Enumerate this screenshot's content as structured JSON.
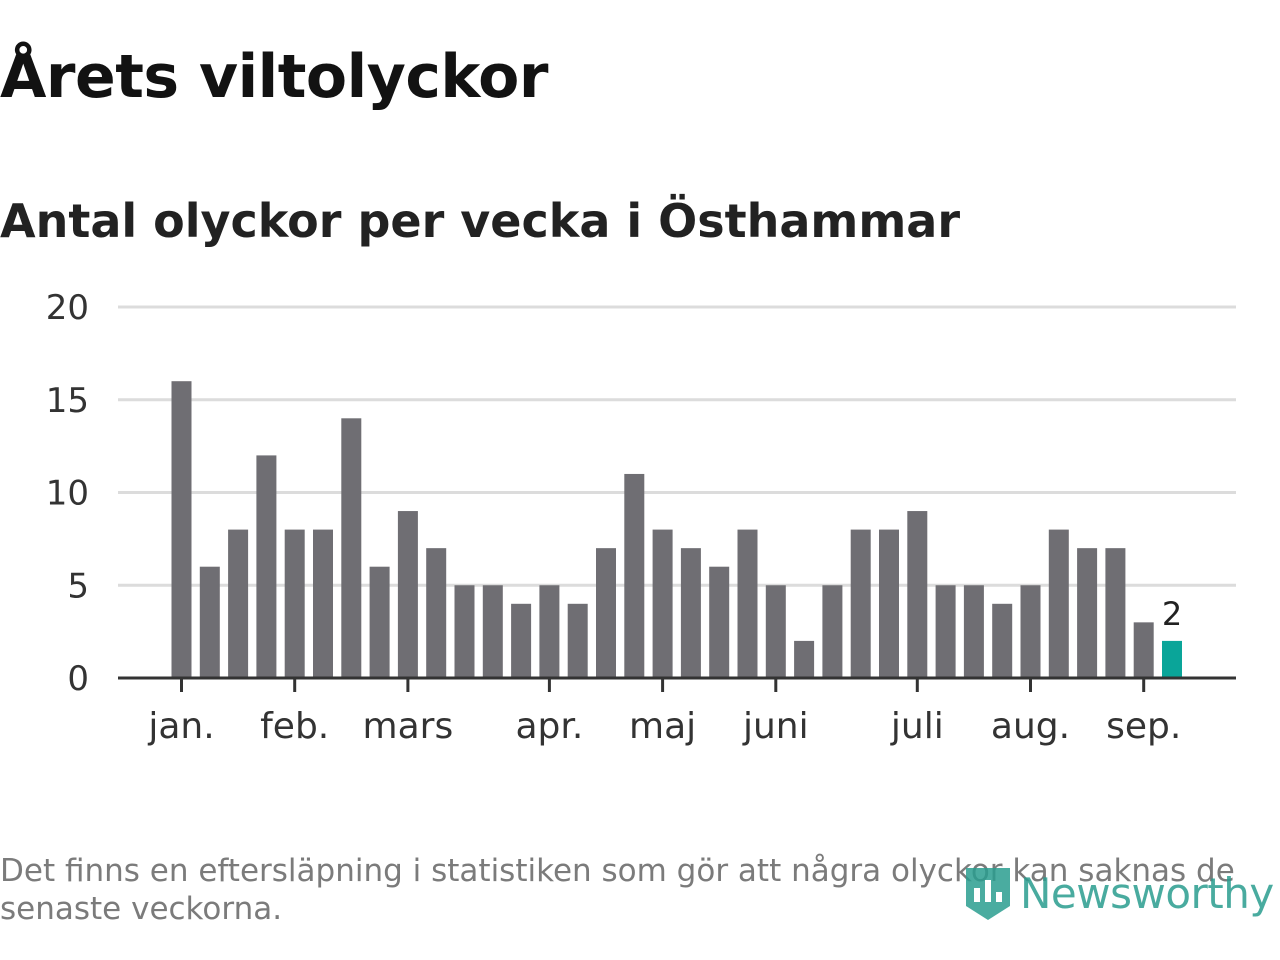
{
  "header": {
    "title": "Årets viltolyckor",
    "subtitle": "Antal olyckor per vecka i Östhammar"
  },
  "footer": {
    "note": "Det finns en eftersläpning i statistiken som gör att några olyckor kan saknas de senaste veckorna.",
    "brand": "Newsworthy",
    "brand_icon": "chart-badge-icon"
  },
  "colors": {
    "bar": "#6f6e73",
    "highlight": "#0aa599",
    "grid": "#dcdcdc",
    "axis": "#333333",
    "brand": "#2a9d8f"
  },
  "chart_data": {
    "type": "bar",
    "title": "Antal olyckor per vecka i Östhammar",
    "xlabel": "",
    "ylabel": "",
    "ylim": [
      0,
      20
    ],
    "yticks": [
      0,
      5,
      10,
      15,
      20
    ],
    "grid": true,
    "values": [
      16,
      6,
      8,
      12,
      8,
      8,
      14,
      6,
      9,
      7,
      5,
      5,
      4,
      5,
      4,
      7,
      11,
      8,
      7,
      6,
      8,
      5,
      2,
      5,
      8,
      8,
      9,
      5,
      5,
      4,
      5,
      8,
      7,
      7,
      3,
      2
    ],
    "highlight_index": 35,
    "highlight_label": "2",
    "month_ticks": [
      {
        "label": "jan.",
        "week_index": 0
      },
      {
        "label": "feb.",
        "week_index": 4
      },
      {
        "label": "mars",
        "week_index": 8
      },
      {
        "label": "apr.",
        "week_index": 13
      },
      {
        "label": "maj",
        "week_index": 17
      },
      {
        "label": "juni",
        "week_index": 21
      },
      {
        "label": "juli",
        "week_index": 26
      },
      {
        "label": "aug.",
        "week_index": 30
      },
      {
        "label": "sep.",
        "week_index": 34
      }
    ]
  }
}
